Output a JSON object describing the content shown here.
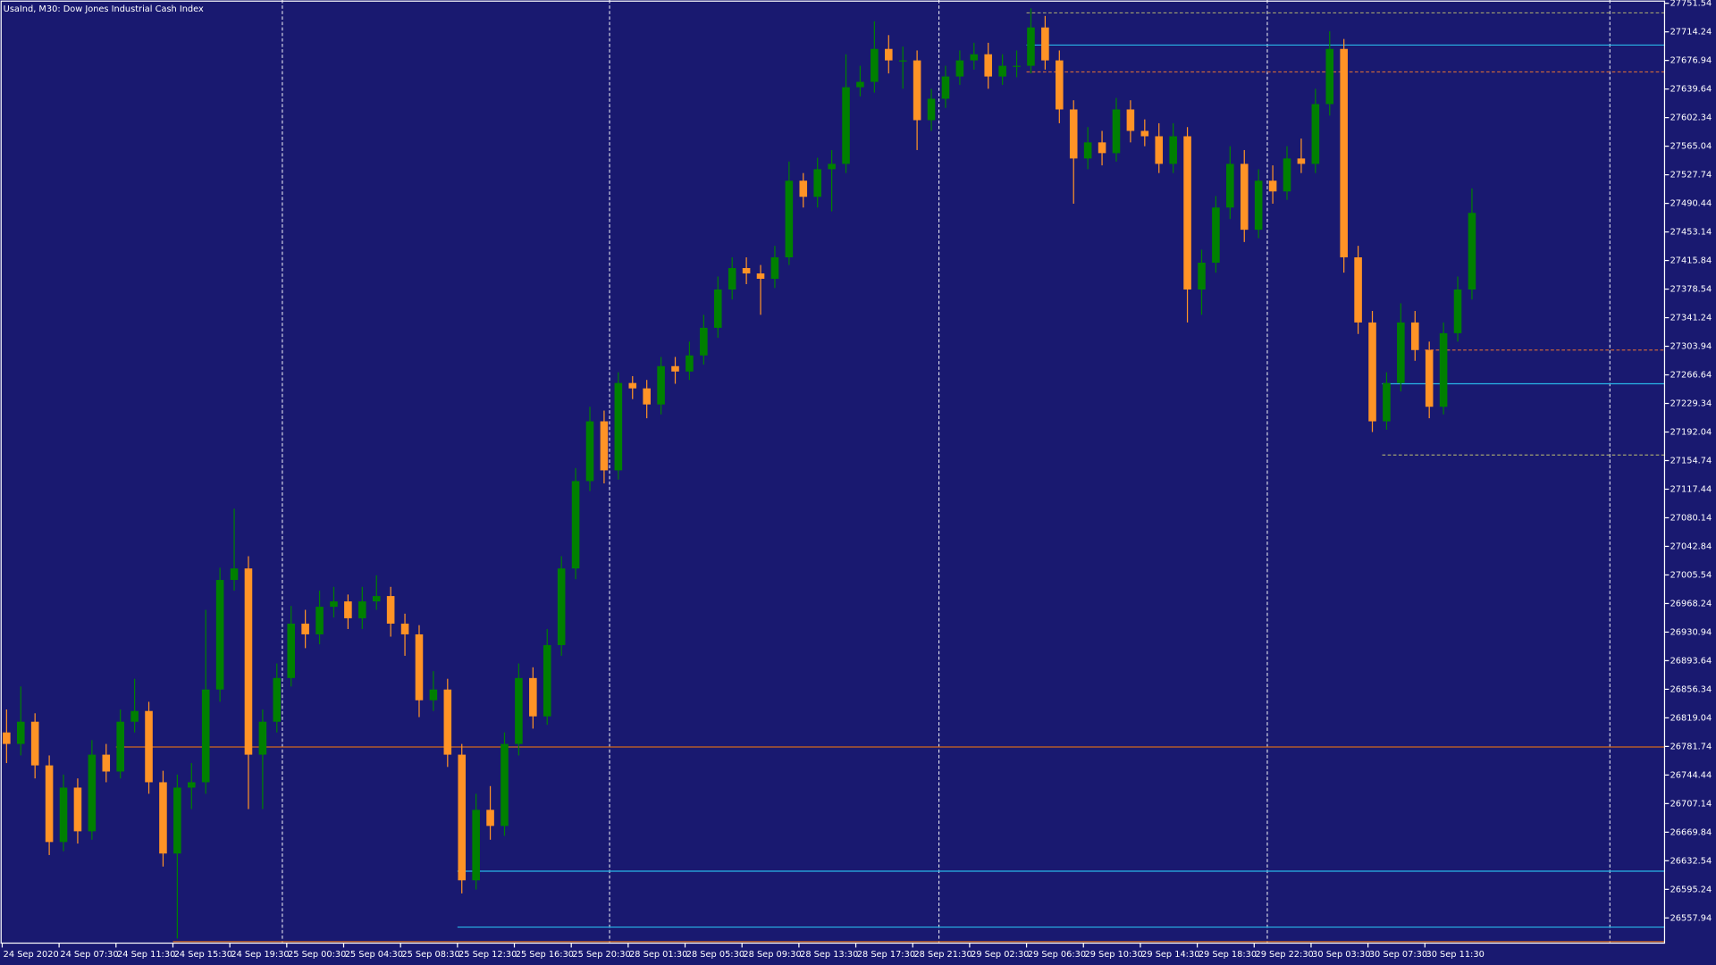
{
  "chart_data": {
    "type": "candlestick",
    "title": "UsaInd, M30:  Dow Jones Industrial Cash Index",
    "up_color": "#008000",
    "down_color": "#ff9326",
    "ylim": [
      26525.07,
      27755.82
    ],
    "yticks": [
      27751.54,
      27714.24,
      27676.94,
      27639.64,
      27602.34,
      27565.04,
      27527.74,
      27490.44,
      27453.14,
      27415.84,
      27378.54,
      27341.24,
      27303.94,
      27266.64,
      27229.34,
      27192.04,
      27154.74,
      27117.44,
      27080.14,
      27042.84,
      27005.54,
      26968.24,
      26930.94,
      26893.64,
      26856.34,
      26819.04,
      26781.74,
      26744.44,
      26707.14,
      26669.84,
      26632.54,
      26595.24,
      26557.94
    ],
    "categories": [
      "24 Sep 2020",
      null,
      null,
      null,
      "24 Sep 07:30",
      null,
      null,
      null,
      "24 Sep 11:30",
      null,
      null,
      null,
      "24 Sep 15:30",
      null,
      null,
      null,
      "24 Sep 19:30",
      null,
      null,
      null,
      "25 Sep 00:30",
      null,
      null,
      null,
      "25 Sep 04:30",
      null,
      null,
      null,
      "25 Sep 08:30",
      null,
      null,
      null,
      "25 Sep 12:30",
      null,
      null,
      null,
      "25 Sep 16:30",
      null,
      null,
      null,
      "25 Sep 20:30",
      null,
      null,
      null,
      "28 Sep 01:30",
      null,
      null,
      null,
      "28 Sep 05:30",
      null,
      null,
      null,
      "28 Sep 09:30",
      null,
      null,
      null,
      "28 Sep 13:30",
      null,
      null,
      null,
      "28 Sep 17:30",
      null,
      null,
      null,
      "28 Sep 21:30",
      null,
      null,
      null,
      "29 Sep 02:30",
      null,
      null,
      null,
      "29 Sep 06:30",
      null,
      null,
      null,
      "29 Sep 10:30",
      null,
      null,
      null,
      "29 Sep 14:30",
      null,
      null,
      null,
      "29 Sep 18:30",
      null,
      null,
      null,
      "29 Sep 22:30",
      null,
      null,
      null,
      "30 Sep 03:30",
      null,
      null,
      null,
      "30 Sep 07:30",
      null,
      null,
      null,
      "30 Sep 11:30",
      null,
      null,
      null
    ],
    "candles": [
      [
        26800,
        26830,
        26760,
        26785
      ],
      [
        26785,
        26860,
        26770,
        26814
      ],
      [
        26814,
        26825,
        26740,
        26757
      ],
      [
        26757,
        26770,
        26640,
        26657
      ],
      [
        26657,
        26745,
        26645,
        26728
      ],
      [
        26728,
        26740,
        26655,
        26671
      ],
      [
        26671,
        26790,
        26660,
        26771
      ],
      [
        26771,
        26785,
        26735,
        26749
      ],
      [
        26749,
        26830,
        26740,
        26814
      ],
      [
        26814,
        26870,
        26800,
        26828
      ],
      [
        26828,
        26840,
        26720,
        26735
      ],
      [
        26735,
        26750,
        26625,
        26642
      ],
      [
        26642,
        26745,
        26531,
        26728
      ],
      [
        26728,
        26760,
        26700,
        26735
      ],
      [
        26735,
        26960,
        26720,
        26856
      ],
      [
        26856,
        27015,
        26840,
        26999
      ],
      [
        26999,
        27092,
        26985,
        27014
      ],
      [
        27014,
        27030,
        26700,
        26771
      ],
      [
        26771,
        26830,
        26700,
        26814
      ],
      [
        26814,
        26890,
        26800,
        26871
      ],
      [
        26871,
        26965,
        26860,
        26942
      ],
      [
        26942,
        26960,
        26910,
        26928
      ],
      [
        26928,
        26985,
        26915,
        26964
      ],
      [
        26964,
        26990,
        26950,
        26971
      ],
      [
        26971,
        26980,
        26935,
        26949
      ],
      [
        26949,
        26990,
        26935,
        26971
      ],
      [
        26971,
        27005,
        26960,
        26978
      ],
      [
        26978,
        26990,
        26925,
        26942
      ],
      [
        26942,
        26955,
        26900,
        26928
      ],
      [
        26928,
        26940,
        26820,
        26842
      ],
      [
        26842,
        26880,
        26828,
        26856
      ],
      [
        26856,
        26870,
        26755,
        26771
      ],
      [
        26771,
        26785,
        26590,
        26607
      ],
      [
        26607,
        26720,
        26595,
        26699
      ],
      [
        26699,
        26730,
        26660,
        26678
      ],
      [
        26678,
        26800,
        26665,
        26785
      ],
      [
        26785,
        26890,
        26770,
        26871
      ],
      [
        26871,
        26885,
        26805,
        26821
      ],
      [
        26821,
        26935,
        26810,
        26914
      ],
      [
        26914,
        27030,
        26900,
        27014
      ],
      [
        27014,
        27145,
        27000,
        27128
      ],
      [
        27128,
        27225,
        27115,
        27206
      ],
      [
        27206,
        27220,
        27125,
        27142
      ],
      [
        27142,
        27270,
        27130,
        27256
      ],
      [
        27256,
        27265,
        27235,
        27249
      ],
      [
        27249,
        27260,
        27210,
        27228
      ],
      [
        27228,
        27290,
        27215,
        27278
      ],
      [
        27278,
        27290,
        27255,
        27271
      ],
      [
        27271,
        27310,
        27260,
        27292
      ],
      [
        27292,
        27345,
        27280,
        27328
      ],
      [
        27328,
        27395,
        27315,
        27378
      ],
      [
        27378,
        27420,
        27365,
        27406
      ],
      [
        27406,
        27420,
        27385,
        27399
      ],
      [
        27399,
        27410,
        27345,
        27392
      ],
      [
        27392,
        27435,
        27380,
        27420
      ],
      [
        27420,
        27545,
        27410,
        27520
      ],
      [
        27520,
        27530,
        27485,
        27499
      ],
      [
        27499,
        27550,
        27485,
        27535
      ],
      [
        27535,
        27560,
        27480,
        27542
      ],
      [
        27542,
        27685,
        27530,
        27642
      ],
      [
        27642,
        27670,
        27630,
        27649
      ],
      [
        27649,
        27728,
        27635,
        27692
      ],
      [
        27692,
        27710,
        27660,
        27677
      ],
      [
        27677,
        27695,
        27640,
        27677
      ],
      [
        27677,
        27690,
        27560,
        27599
      ],
      [
        27599,
        27640,
        27585,
        27627
      ],
      [
        27627,
        27670,
        27615,
        27656
      ],
      [
        27656,
        27690,
        27645,
        27677
      ],
      [
        27677,
        27700,
        27665,
        27685
      ],
      [
        27685,
        27700,
        27640,
        27656
      ],
      [
        27656,
        27685,
        27645,
        27670
      ],
      [
        27670,
        27690,
        27655,
        27670
      ],
      [
        27670,
        27745,
        27660,
        27720
      ],
      [
        27720,
        27735,
        27665,
        27677
      ],
      [
        27677,
        27690,
        27595,
        27613
      ],
      [
        27613,
        27625,
        27490,
        27549
      ],
      [
        27549,
        27590,
        27535,
        27570
      ],
      [
        27570,
        27585,
        27540,
        27556
      ],
      [
        27556,
        27628,
        27545,
        27613
      ],
      [
        27613,
        27625,
        27570,
        27585
      ],
      [
        27585,
        27600,
        27565,
        27578
      ],
      [
        27578,
        27595,
        27530,
        27542
      ],
      [
        27542,
        27595,
        27530,
        27578
      ],
      [
        27578,
        27590,
        27335,
        27378
      ],
      [
        27378,
        27430,
        27345,
        27413
      ],
      [
        27413,
        27500,
        27400,
        27485
      ],
      [
        27485,
        27565,
        27470,
        27542
      ],
      [
        27542,
        27560,
        27440,
        27456
      ],
      [
        27456,
        27535,
        27445,
        27520
      ],
      [
        27520,
        27540,
        27490,
        27506
      ],
      [
        27506,
        27565,
        27495,
        27549
      ],
      [
        27549,
        27575,
        27530,
        27542
      ],
      [
        27542,
        27640,
        27530,
        27620
      ],
      [
        27620,
        27715,
        27605,
        27692
      ],
      [
        27692,
        27705,
        27400,
        27420
      ],
      [
        27420,
        27435,
        27320,
        27335
      ],
      [
        27335,
        27350,
        27192,
        27206
      ],
      [
        27206,
        27270,
        27195,
        27256
      ],
      [
        27256,
        27360,
        27245,
        27335
      ],
      [
        27335,
        27350,
        27285,
        27299
      ],
      [
        27299,
        27310,
        27210,
        27225
      ],
      [
        27225,
        27335,
        27215,
        27321
      ],
      [
        27321,
        27395,
        27310,
        27378
      ],
      [
        27378,
        27510,
        27365,
        27478
      ]
    ],
    "levels": [
      {
        "value": 26781,
        "from": 8,
        "color": "#d2691e",
        "dash": false
      },
      {
        "value": 27697,
        "from": 72,
        "color": "#29b6e8",
        "dash": false
      },
      {
        "value": 27255,
        "from": 97,
        "color": "#29b6e8",
        "dash": false
      },
      {
        "value": 26619,
        "from": 32,
        "color": "#29b6e8",
        "dash": false
      },
      {
        "value": 26546,
        "from": 32,
        "color": "#29b6e8",
        "dash": false
      },
      {
        "value": 26527,
        "from": 12,
        "color": "#d2691e",
        "dash": false
      },
      {
        "value": 27662,
        "from": 72,
        "color": "#c8643c",
        "dash": true
      },
      {
        "value": 27299,
        "from": 100,
        "color": "#c8643c",
        "dash": true
      },
      {
        "value": 27739,
        "from": 72,
        "color": "#a0a070",
        "dash": true
      },
      {
        "value": 27162,
        "from": 97,
        "color": "#a0a070",
        "dash": true
      }
    ]
  }
}
